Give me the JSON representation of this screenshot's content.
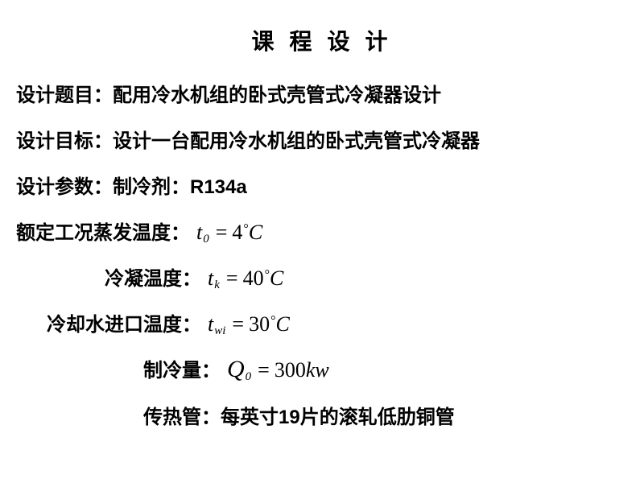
{
  "title": "课 程 设 计",
  "lines": {
    "topic_label": "设计题目：",
    "topic_value": "配用冷水机组的卧式壳管式冷凝器设计",
    "goal_label": "设计目标：",
    "goal_value": "设计一台配用冷水机组的卧式壳管式冷凝器",
    "param_label": "设计参数：",
    "param_sub": "制冷剂：",
    "refrigerant": "R134a",
    "evap_label": "额定工况蒸发温度：",
    "cond_label": "冷凝温度：",
    "inlet_label": "冷却水进口温度：",
    "capacity_label": "制冷量：",
    "tube_label": "传热管：",
    "tube_value_pre": "每英寸",
    "tube_value_num": "19",
    "tube_value_post": "片的滚轧低肋铜管"
  },
  "formulas": {
    "t0": {
      "var": "t",
      "sub": "0",
      "val": "4",
      "unit": "C"
    },
    "tk": {
      "var": "t",
      "sub": "k",
      "val": "40",
      "unit": "C"
    },
    "twi": {
      "var": "t",
      "sub": "wi",
      "val": "30",
      "unit": "C"
    },
    "q0": {
      "var": "Q",
      "sub": "0",
      "val": "300",
      "unit": "kw"
    }
  },
  "colors": {
    "background": "#ffffff",
    "text": "#000000"
  },
  "fonts": {
    "chinese": "SimSun",
    "formula": "Times New Roman",
    "bold_label": "SimHei"
  }
}
